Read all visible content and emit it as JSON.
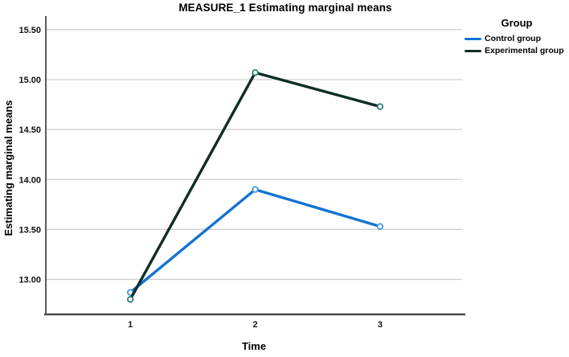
{
  "chart_data": {
    "type": "line",
    "title": "MEASURE_1 Estimating marginal means",
    "xlabel": "Time",
    "ylabel": "Estimating marginal means",
    "legend_title": "Group",
    "legend_position": "right-top",
    "grid": true,
    "x": [
      1,
      2,
      3
    ],
    "xticklabels": [
      "1",
      "2",
      "3"
    ],
    "yticks": [
      13.0,
      13.5,
      14.0,
      14.5,
      15.0,
      15.5
    ],
    "yticklabels": [
      "13.00",
      "13.50",
      "14.00",
      "14.50",
      "15.00",
      "15.50"
    ],
    "ylim": [
      12.65,
      15.62
    ],
    "series": [
      {
        "name": "Control group",
        "color": "#1274d2",
        "marker_color": "#3f9be2",
        "values": [
          12.87,
          13.9,
          13.53
        ]
      },
      {
        "name": "Experimental group",
        "color": "#0e2d27",
        "marker_color": "#2b7f70",
        "values": [
          12.8,
          15.07,
          14.73
        ]
      }
    ],
    "colors": {
      "grid": "#cccccc",
      "x_axis": "#4a4a4a",
      "y_axis": "#262626",
      "background": "#ffffff",
      "marker_fill": "#ffffff"
    }
  }
}
